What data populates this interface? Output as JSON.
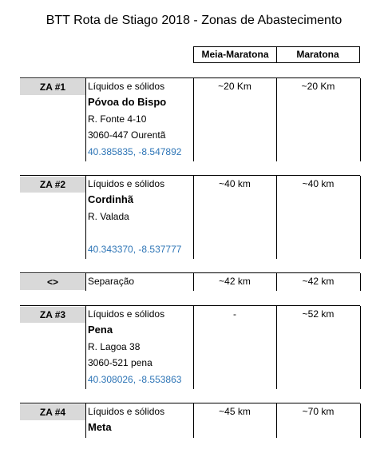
{
  "header": {
    "title": "BTT Rota de Stiago 2018 - Zonas de Abastecimento",
    "col_meia": "Meia-Maratona",
    "col_maratona": "Maratona"
  },
  "blocks": [
    {
      "label": "ZA #1",
      "kind": "Líquidos e sólidos",
      "name": "Póvoa do Bispo",
      "address": [
        "R. Fonte 4-10",
        "3060-447 Ourentã"
      ],
      "coords": "40.385835, -8.547892",
      "meia": "~20 Km",
      "maratona": "~20 Km"
    },
    {
      "label": "ZA #2",
      "kind": "Líquidos e sólidos",
      "name": "Cordinhã",
      "address": [
        "R. Valada"
      ],
      "coords": "40.343370, -8.537777",
      "meia": "~40 km",
      "maratona": "~40 km"
    },
    {
      "label": "<>",
      "kind": "Separação",
      "meia": "~42 km",
      "maratona": "~42 km"
    },
    {
      "label": "ZA #3",
      "kind": "Líquidos e sólidos",
      "name": "Pena",
      "address": [
        "R. Lagoa 38",
        "3060-521 pena"
      ],
      "coords": "40.308026, -8.553863",
      "meia": "-",
      "maratona": "~52 km"
    },
    {
      "label": "ZA #4",
      "kind": "Líquidos e sólidos",
      "name": "Meta",
      "meia": "~45 km",
      "maratona": "~70 km"
    }
  ]
}
